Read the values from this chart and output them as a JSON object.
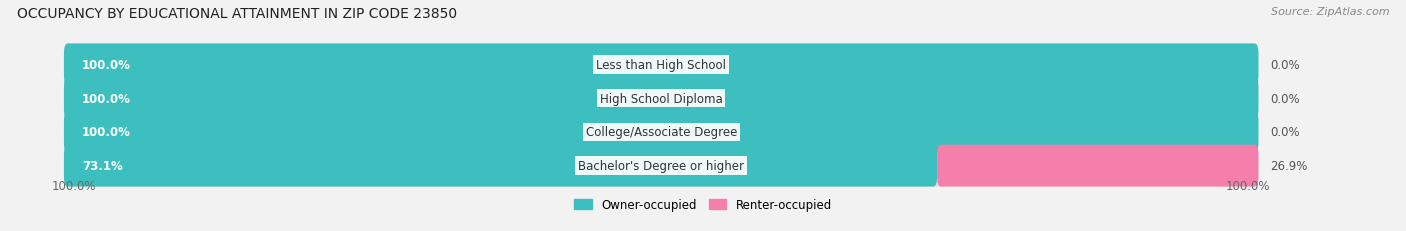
{
  "title": "OCCUPANCY BY EDUCATIONAL ATTAINMENT IN ZIP CODE 23850",
  "source": "Source: ZipAtlas.com",
  "categories": [
    "Less than High School",
    "High School Diploma",
    "College/Associate Degree",
    "Bachelor's Degree or higher"
  ],
  "owner_pct": [
    100.0,
    100.0,
    100.0,
    73.1
  ],
  "renter_pct": [
    0.0,
    0.0,
    0.0,
    26.9
  ],
  "owner_color": "#3ebfbf",
  "renter_color": "#f47faa",
  "bar_bg_color": "#e0e0e0",
  "owner_label": "Owner-occupied",
  "renter_label": "Renter-occupied",
  "title_fontsize": 10,
  "source_fontsize": 8,
  "label_fontsize": 8.5,
  "bar_label_fontsize": 8.5,
  "axis_label_fontsize": 8.5,
  "bg_color": "#f2f2f2",
  "bar_height": 0.62,
  "xmin": 0,
  "xmax": 100
}
